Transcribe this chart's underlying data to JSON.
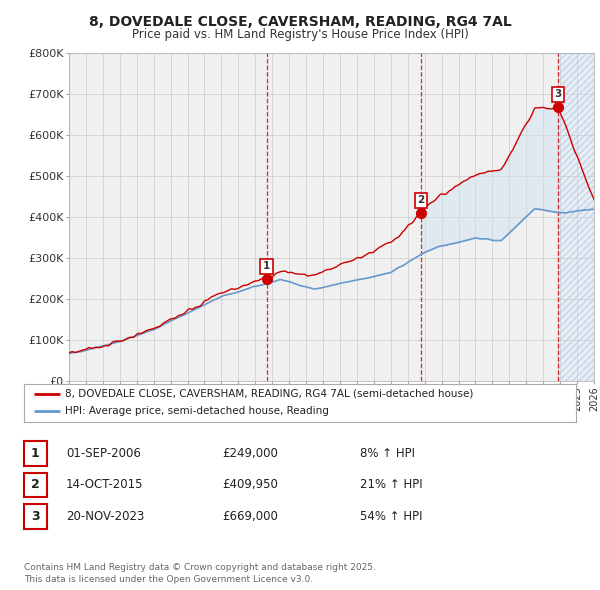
{
  "title": "8, DOVEDALE CLOSE, CAVERSHAM, READING, RG4 7AL",
  "subtitle": "Price paid vs. HM Land Registry's House Price Index (HPI)",
  "background_color": "#f5f5f5",
  "plot_bg_color": "#f0f0f0",
  "grid_color": "#cccccc",
  "red_line_color": "#cc0000",
  "blue_line_color": "#6699cc",
  "shade_color": "#d0e4f0",
  "hatch_color": "#aabbcc",
  "legend_line1": "8, DOVEDALE CLOSE, CAVERSHAM, READING, RG4 7AL (semi-detached house)",
  "legend_line2": "HPI: Average price, semi-detached house, Reading",
  "sale_markers": [
    {
      "year": 2006.67,
      "price": 249000,
      "label": "1"
    },
    {
      "year": 2015.79,
      "price": 409950,
      "label": "2"
    },
    {
      "year": 2023.89,
      "price": 669000,
      "label": "3"
    }
  ],
  "sale_vlines": [
    2006.67,
    2015.79,
    2023.89
  ],
  "table_data": [
    [
      "1",
      "01-SEP-2006",
      "£249,000",
      "8% ↑ HPI"
    ],
    [
      "2",
      "14-OCT-2015",
      "£409,950",
      "21% ↑ HPI"
    ],
    [
      "3",
      "20-NOV-2023",
      "£669,000",
      "54% ↑ HPI"
    ]
  ],
  "footer": "Contains HM Land Registry data © Crown copyright and database right 2025.\nThis data is licensed under the Open Government Licence v3.0.",
  "xmin": 1995,
  "xmax": 2026,
  "ymin": 0,
  "ymax": 800000,
  "yticks": [
    0,
    100000,
    200000,
    300000,
    400000,
    500000,
    600000,
    700000,
    800000
  ],
  "ytick_labels": [
    "£0",
    "£100K",
    "£200K",
    "£300K",
    "£400K",
    "£500K",
    "£600K",
    "£700K",
    "£800K"
  ]
}
